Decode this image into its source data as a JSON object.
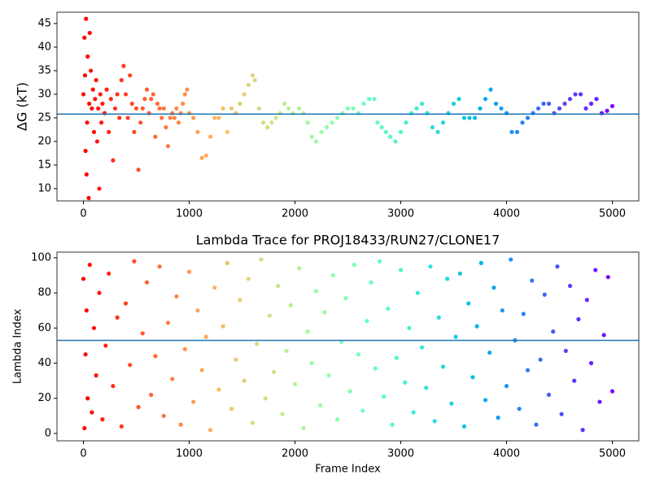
{
  "chart_data": [
    {
      "type": "scatter",
      "ylabel": "ΔG (kT)",
      "colormap": "rainbow_r",
      "hline": 25.8,
      "hline_color": "#1f77b4",
      "xlim": [
        -250,
        5250
      ],
      "xticks": [
        0,
        1000,
        2000,
        3000,
        4000,
        5000
      ],
      "ylim": [
        7.4,
        47.4
      ],
      "yticks": [
        10,
        15,
        20,
        25,
        30,
        35,
        40,
        45
      ],
      "x": [
        0,
        10,
        15,
        20,
        25,
        30,
        35,
        40,
        50,
        55,
        60,
        70,
        80,
        90,
        100,
        110,
        120,
        130,
        140,
        150,
        160,
        170,
        180,
        200,
        220,
        240,
        260,
        280,
        300,
        320,
        340,
        360,
        380,
        400,
        420,
        440,
        460,
        480,
        500,
        520,
        540,
        560,
        580,
        600,
        620,
        640,
        660,
        680,
        700,
        720,
        740,
        760,
        780,
        800,
        820,
        840,
        860,
        880,
        900,
        920,
        940,
        960,
        980,
        1000,
        1040,
        1080,
        1120,
        1160,
        1200,
        1240,
        1280,
        1320,
        1360,
        1400,
        1440,
        1480,
        1520,
        1560,
        1600,
        1620,
        1660,
        1700,
        1740,
        1780,
        1820,
        1860,
        1900,
        1940,
        1980,
        2040,
        2080,
        2120,
        2160,
        2200,
        2250,
        2300,
        2350,
        2400,
        2450,
        2500,
        2550,
        2600,
        2650,
        2700,
        2750,
        2780,
        2820,
        2860,
        2900,
        2950,
        3000,
        3050,
        3100,
        3150,
        3200,
        3250,
        3300,
        3350,
        3400,
        3450,
        3500,
        3550,
        3600,
        3650,
        3700,
        3750,
        3800,
        3850,
        3900,
        3950,
        4000,
        4050,
        4100,
        4150,
        4200,
        4250,
        4300,
        4350,
        4400,
        4450,
        4500,
        4550,
        4600,
        4650,
        4700,
        4750,
        4800,
        4850,
        4900,
        4950,
        5000
      ],
      "values": [
        30,
        42,
        34,
        18,
        46,
        13,
        24,
        38,
        8,
        28,
        43,
        35,
        27,
        31,
        22,
        29,
        33,
        20,
        27,
        10,
        30,
        24,
        28,
        26,
        31,
        22,
        29,
        16,
        27,
        30,
        25,
        33,
        36,
        30,
        25,
        34,
        28,
        22,
        27,
        14,
        24,
        27,
        29,
        31,
        26,
        29,
        30,
        21,
        28,
        27,
        25,
        27,
        23,
        19,
        25,
        26,
        25,
        27,
        24,
        26,
        28,
        30,
        31,
        26,
        25,
        22,
        16.5,
        17,
        21,
        25,
        25,
        27,
        22,
        27,
        26,
        28,
        30,
        32,
        34,
        33,
        27,
        24,
        23,
        24,
        25,
        26,
        28,
        27,
        26,
        27,
        26,
        24,
        21,
        20,
        22,
        23,
        24,
        25,
        26,
        27,
        27,
        26,
        28,
        29,
        29,
        24,
        23,
        22,
        21,
        20,
        22,
        24,
        26,
        27,
        28,
        26,
        23,
        22,
        24,
        26,
        28,
        29,
        25,
        25,
        25,
        27,
        29,
        31,
        28,
        27,
        26,
        22,
        22,
        24,
        25,
        26,
        27,
        28,
        28,
        26,
        27,
        28,
        29,
        30,
        30,
        27,
        28,
        29,
        26,
        26.5,
        27.5
      ]
    },
    {
      "type": "scatter",
      "title": "Lambda Trace for PROJ18433/RUN27/CLONE17",
      "xlabel": "Frame Index",
      "ylabel": "Lambda Index",
      "colormap": "rainbow_r",
      "hline": 53,
      "hline_color": "#1f77b4",
      "xlim": [
        -250,
        5250
      ],
      "xticks": [
        0,
        1000,
        2000,
        3000,
        4000,
        5000
      ],
      "ylim": [
        -4.2,
        103.2
      ],
      "yticks": [
        0,
        20,
        40,
        60,
        80,
        100
      ],
      "x": [
        0,
        10,
        20,
        30,
        40,
        60,
        80,
        100,
        120,
        150,
        180,
        210,
        240,
        280,
        320,
        360,
        400,
        440,
        480,
        520,
        560,
        600,
        640,
        680,
        720,
        760,
        800,
        840,
        880,
        920,
        960,
        1000,
        1040,
        1080,
        1120,
        1160,
        1200,
        1240,
        1280,
        1320,
        1360,
        1400,
        1440,
        1480,
        1520,
        1560,
        1600,
        1640,
        1680,
        1720,
        1760,
        1800,
        1840,
        1880,
        1920,
        1960,
        2000,
        2040,
        2080,
        2120,
        2160,
        2200,
        2240,
        2280,
        2320,
        2360,
        2400,
        2440,
        2480,
        2520,
        2560,
        2600,
        2640,
        2680,
        2720,
        2760,
        2800,
        2840,
        2880,
        2920,
        2960,
        3000,
        3040,
        3080,
        3120,
        3160,
        3200,
        3240,
        3280,
        3320,
        3360,
        3400,
        3440,
        3480,
        3520,
        3560,
        3600,
        3640,
        3680,
        3720,
        3760,
        3800,
        3840,
        3880,
        3920,
        3960,
        4000,
        4040,
        4080,
        4120,
        4160,
        4200,
        4240,
        4280,
        4320,
        4360,
        4400,
        4440,
        4480,
        4520,
        4560,
        4600,
        4640,
        4680,
        4720,
        4760,
        4800,
        4840,
        4880,
        4920,
        4960,
        5000
      ],
      "values": [
        88,
        3,
        45,
        70,
        20,
        96,
        12,
        60,
        33,
        80,
        8,
        50,
        91,
        27,
        66,
        4,
        74,
        39,
        98,
        15,
        57,
        86,
        22,
        44,
        95,
        10,
        63,
        31,
        78,
        5,
        48,
        92,
        18,
        70,
        36,
        55,
        2,
        83,
        25,
        61,
        97,
        14,
        42,
        76,
        30,
        88,
        6,
        51,
        99,
        20,
        67,
        35,
        84,
        11,
        47,
        73,
        28,
        94,
        3,
        58,
        40,
        81,
        16,
        69,
        33,
        90,
        8,
        52,
        77,
        24,
        96,
        45,
        13,
        64,
        86,
        37,
        98,
        21,
        71,
        5,
        43,
        93,
        29,
        60,
        12,
        80,
        49,
        26,
        95,
        7,
        66,
        38,
        88,
        17,
        55,
        91,
        4,
        74,
        32,
        61,
        97,
        19,
        46,
        83,
        9,
        70,
        27,
        99,
        53,
        14,
        68,
        36,
        87,
        5,
        42,
        79,
        22,
        58,
        95,
        11,
        47,
        84,
        30,
        65,
        2,
        76,
        40,
        93,
        18,
        56,
        89,
        24
      ]
    }
  ]
}
